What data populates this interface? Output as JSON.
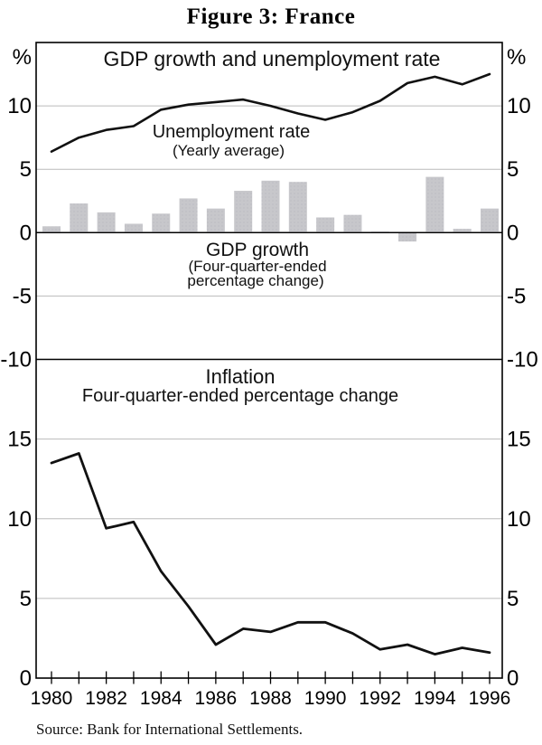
{
  "figure": {
    "title": "Figure 3: France",
    "source": "Source: Bank for International Settlements."
  },
  "x_axis": {
    "tick_labels": [
      "1980",
      "1982",
      "1984",
      "1986",
      "1988",
      "1990",
      "1992",
      "1994",
      "1996"
    ]
  },
  "colors": {
    "bar_fill": "#c7c7cb",
    "bar_dot": "#b7b7bf",
    "line": "#111111",
    "grid": "#bbbbbb",
    "frame": "#000000"
  },
  "chart_data": [
    {
      "type": "bar",
      "panel": "top",
      "title": "GDP growth and unemployment rate",
      "unit_left": "%",
      "unit_right": "%",
      "ylim": [
        -10,
        15
      ],
      "yticks": [
        10,
        5,
        0,
        -5,
        -10
      ],
      "x": [
        1980,
        1981,
        1982,
        1983,
        1984,
        1985,
        1986,
        1987,
        1988,
        1989,
        1990,
        1991,
        1992,
        1993,
        1994,
        1995,
        1996
      ],
      "series": [
        {
          "name": "Unemployment rate",
          "type": "line",
          "label_lines": [
            "Unemployment rate",
            "(Yearly average)"
          ],
          "values": [
            6.4,
            7.5,
            8.1,
            8.4,
            9.7,
            10.1,
            10.3,
            10.5,
            10.0,
            9.4,
            8.9,
            9.5,
            10.4,
            11.8,
            12.3,
            11.7,
            12.5
          ]
        },
        {
          "name": "GDP growth",
          "type": "bar",
          "label_lines": [
            "GDP growth",
            "(Four-quarter-ended",
            "percentage change)"
          ],
          "values": [
            0.5,
            2.3,
            1.6,
            0.7,
            1.5,
            2.7,
            1.9,
            3.3,
            4.1,
            4.0,
            1.2,
            1.4,
            0.1,
            -0.7,
            4.4,
            0.3,
            1.9
          ]
        }
      ]
    },
    {
      "type": "line",
      "panel": "bottom",
      "title": "Inflation",
      "subtitle": "Four-quarter-ended percentage change",
      "ylim": [
        0,
        20
      ],
      "yticks": [
        15,
        10,
        5,
        0
      ],
      "x": [
        1980,
        1981,
        1982,
        1983,
        1984,
        1985,
        1986,
        1987,
        1988,
        1989,
        1990,
        1991,
        1992,
        1993,
        1994,
        1995,
        1996
      ],
      "series": [
        {
          "name": "Inflation",
          "type": "line",
          "values": [
            13.5,
            14.1,
            9.4,
            9.8,
            6.7,
            4.5,
            2.1,
            3.1,
            2.9,
            3.5,
            3.5,
            2.8,
            1.8,
            2.1,
            1.5,
            1.9,
            1.6
          ]
        }
      ]
    }
  ]
}
